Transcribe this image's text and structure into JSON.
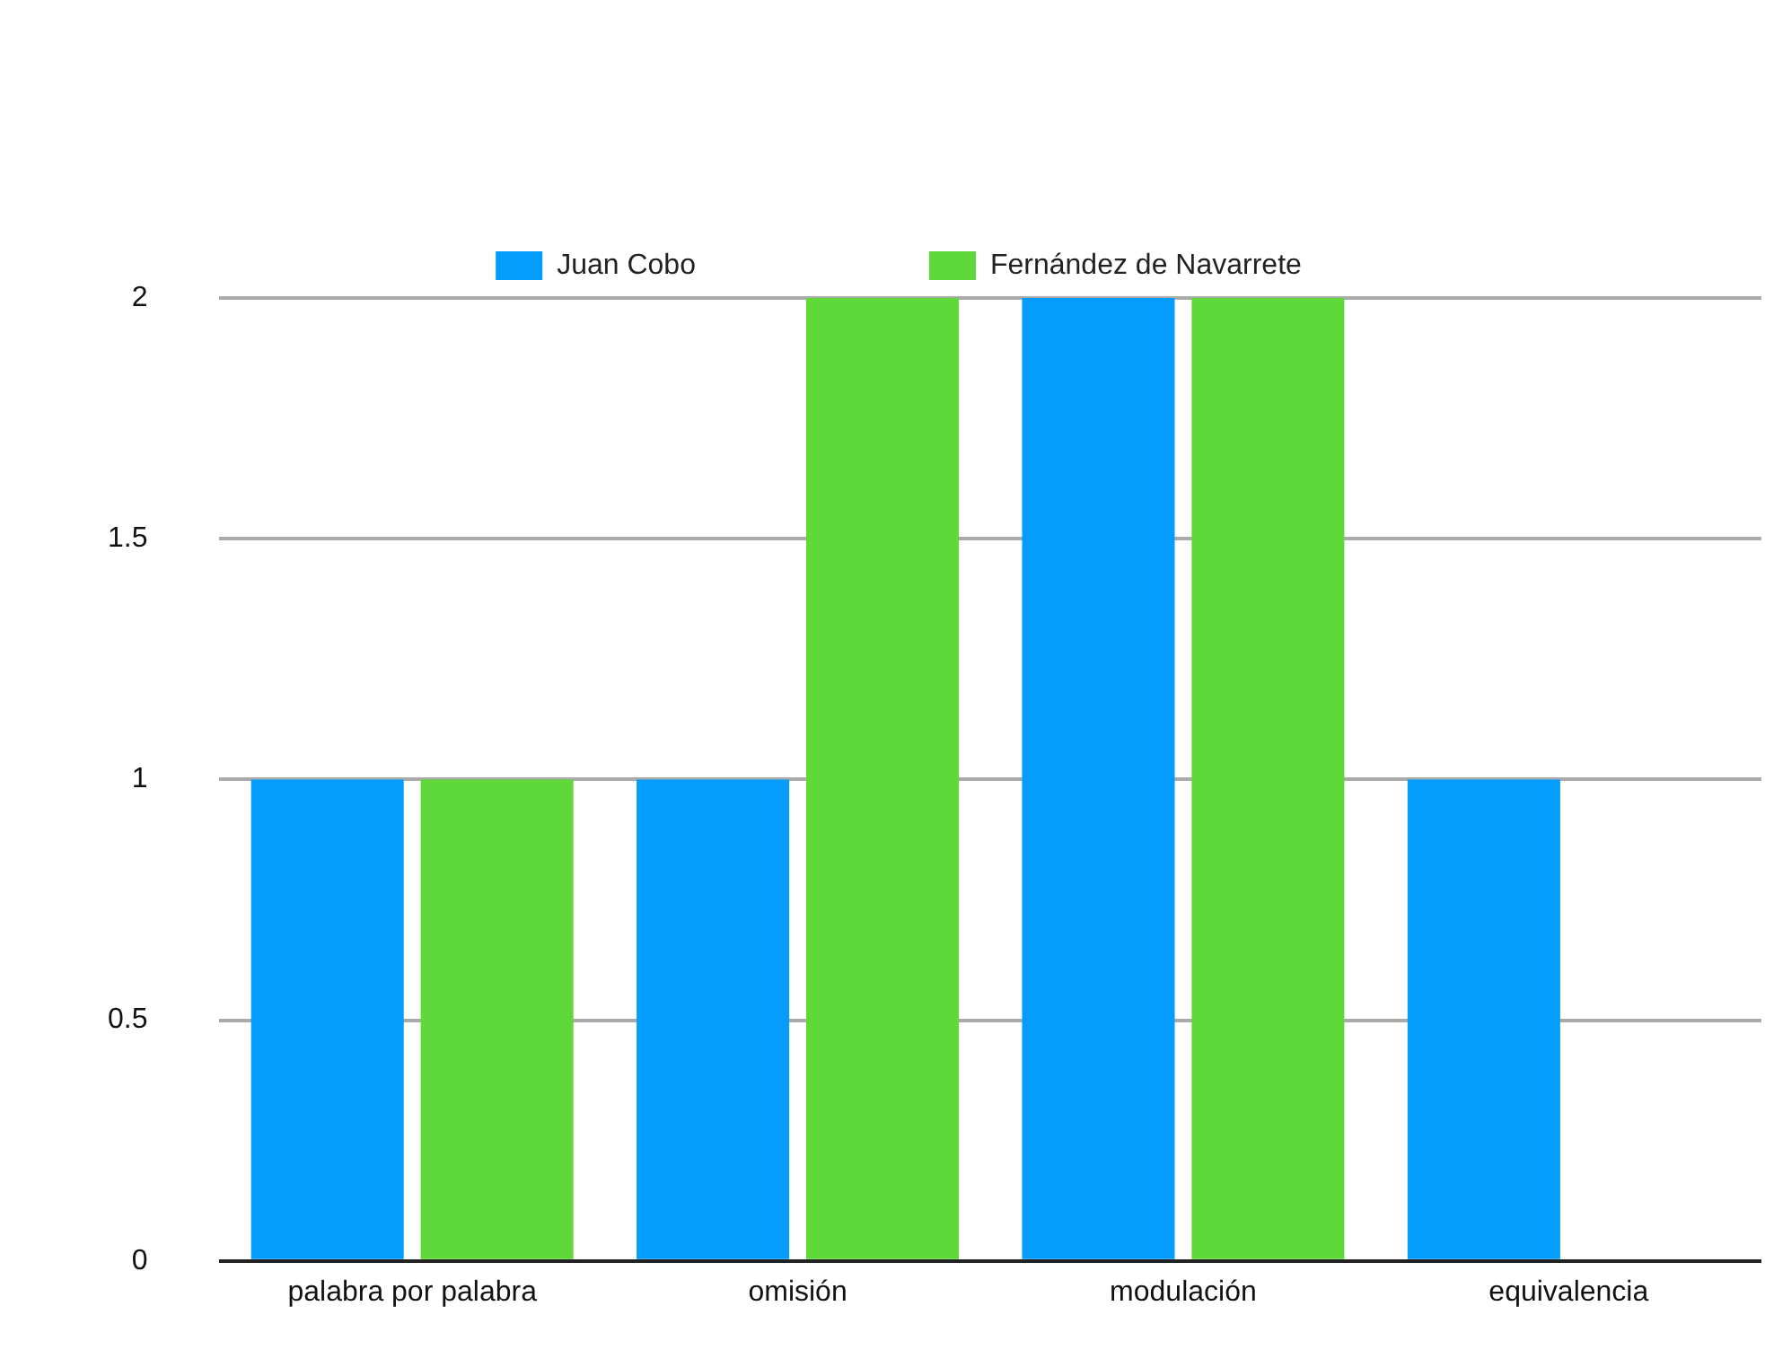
{
  "chart_data": {
    "type": "bar",
    "categories": [
      "palabra por palabra",
      "omisión",
      "modulación",
      "equivalencia"
    ],
    "series": [
      {
        "name": "Juan Cobo",
        "color": "#049dfd",
        "values": [
          1,
          1,
          2,
          1
        ]
      },
      {
        "name": "Fernández de Navarrete",
        "color": "#5fd83a",
        "values": [
          1,
          2,
          2,
          0
        ]
      }
    ],
    "ylim": [
      0,
      2
    ],
    "yticks": [
      0,
      0.5,
      1,
      1.5,
      2
    ],
    "grid": "y",
    "legend": "top"
  }
}
